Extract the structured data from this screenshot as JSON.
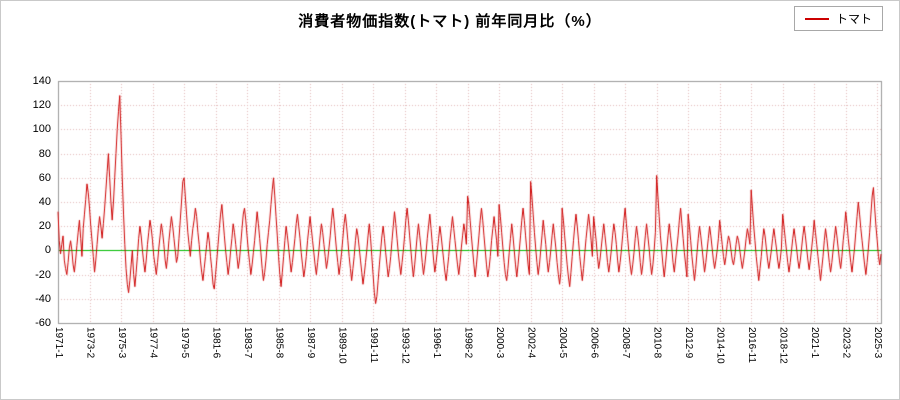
{
  "chart": {
    "title": "消費者物価指数(トマト) 前年同月比（%）",
    "legend_label": "トマト"
  },
  "chart_data": {
    "type": "line",
    "title": "消費者物価指数(トマト) 前年同月比（%）",
    "series_name": "トマト",
    "unit": "%",
    "x_start": "1971-1",
    "x_interval_months": 1,
    "x_tick_step_months": 25,
    "x_tick_labels": [
      "1971-1",
      "1973-2",
      "1975-3",
      "1977-4",
      "1979-5",
      "1981-6",
      "1983-7",
      "1985-8",
      "1987-9",
      "1989-10",
      "1991-11",
      "1993-12",
      "1996-1",
      "1998-2",
      "2000-3",
      "2002-4",
      "2004-5",
      "2006-6",
      "2008-7",
      "2010-8",
      "2012-9",
      "2014-10",
      "2016-11",
      "2018-12",
      "2021-1",
      "2023-2",
      "2025-3"
    ],
    "ylim": [
      -60,
      140
    ],
    "y_tick_step": 20,
    "grid": true,
    "grid_color": "#e2b9b9",
    "line_color": "#cc0000",
    "zero_line_color": "#00bb00",
    "border_color": "#999999",
    "values": [
      32,
      8,
      -3,
      5,
      12,
      -8,
      -15,
      -20,
      -10,
      2,
      8,
      0,
      -12,
      -18,
      -8,
      4,
      15,
      25,
      10,
      -5,
      18,
      30,
      42,
      55,
      48,
      35,
      20,
      8,
      -5,
      -18,
      -8,
      5,
      18,
      28,
      20,
      10,
      22,
      35,
      50,
      65,
      80,
      60,
      40,
      25,
      40,
      60,
      80,
      100,
      115,
      128,
      95,
      60,
      30,
      5,
      -15,
      -28,
      -35,
      -25,
      -12,
      0,
      -20,
      -30,
      -18,
      -5,
      10,
      20,
      12,
      0,
      -10,
      -18,
      -8,
      5,
      15,
      25,
      18,
      8,
      -5,
      -12,
      -20,
      -10,
      2,
      12,
      22,
      15,
      5,
      -8,
      -15,
      -5,
      8,
      18,
      28,
      20,
      10,
      0,
      -10,
      -5,
      10,
      25,
      40,
      57,
      60,
      45,
      30,
      15,
      5,
      -5,
      8,
      18,
      25,
      35,
      28,
      15,
      5,
      -8,
      -18,
      -25,
      -15,
      -5,
      5,
      15,
      8,
      -5,
      -15,
      -28,
      -32,
      -20,
      -8,
      5,
      18,
      30,
      38,
      25,
      12,
      0,
      -10,
      -20,
      -12,
      0,
      10,
      22,
      15,
      5,
      -5,
      -15,
      -8,
      5,
      18,
      30,
      35,
      25,
      12,
      0,
      -10,
      -20,
      -12,
      -2,
      8,
      20,
      32,
      22,
      10,
      -2,
      -15,
      -25,
      -18,
      -8,
      5,
      15,
      25,
      38,
      50,
      60,
      45,
      28,
      12,
      -5,
      -20,
      -30,
      -18,
      -5,
      8,
      20,
      12,
      2,
      -8,
      -18,
      -10,
      0,
      10,
      22,
      30,
      20,
      10,
      -2,
      -12,
      -22,
      -15,
      -5,
      8,
      18,
      28,
      18,
      8,
      -2,
      -12,
      -20,
      -10,
      0,
      12,
      22,
      15,
      5,
      -5,
      -15,
      -8,
      2,
      12,
      25,
      35,
      25,
      12,
      0,
      -10,
      -20,
      -12,
      -2,
      10,
      22,
      30,
      20,
      8,
      -5,
      -15,
      -25,
      -15,
      -5,
      8,
      18,
      12,
      2,
      -8,
      -18,
      -28,
      -20,
      -10,
      0,
      12,
      22,
      10,
      -5,
      -20,
      -35,
      -44,
      -38,
      -25,
      -12,
      0,
      12,
      20,
      10,
      -2,
      -12,
      -22,
      -15,
      -5,
      8,
      20,
      32,
      22,
      10,
      -2,
      -12,
      -20,
      -10,
      0,
      12,
      25,
      35,
      25,
      12,
      0,
      -12,
      -22,
      -12,
      0,
      12,
      22,
      12,
      2,
      -10,
      -20,
      -12,
      -2,
      10,
      20,
      30,
      18,
      5,
      -8,
      -18,
      -10,
      0,
      10,
      20,
      12,
      2,
      -8,
      -18,
      -25,
      -15,
      -5,
      8,
      18,
      28,
      18,
      8,
      -2,
      -12,
      -20,
      -10,
      2,
      12,
      22,
      15,
      5,
      45,
      38,
      25,
      12,
      0,
      -12,
      -22,
      -12,
      0,
      12,
      25,
      35,
      25,
      12,
      0,
      -12,
      -22,
      -15,
      -5,
      8,
      18,
      28,
      18,
      8,
      -5,
      38,
      28,
      15,
      2,
      -10,
      -20,
      -25,
      -15,
      -2,
      10,
      22,
      12,
      0,
      -12,
      -22,
      -12,
      0,
      12,
      25,
      35,
      25,
      12,
      0,
      -12,
      -20,
      57,
      45,
      30,
      15,
      2,
      -10,
      -20,
      -12,
      0,
      12,
      25,
      15,
      5,
      -8,
      -18,
      -10,
      0,
      12,
      22,
      12,
      2,
      -10,
      -20,
      -28,
      -18,
      35,
      25,
      12,
      0,
      -12,
      -22,
      -30,
      -18,
      -5,
      8,
      20,
      30,
      20,
      8,
      -5,
      -15,
      -25,
      -15,
      -2,
      10,
      20,
      30,
      20,
      8,
      -5,
      28,
      18,
      8,
      -5,
      -15,
      -8,
      2,
      12,
      22,
      12,
      2,
      -10,
      -18,
      -10,
      0,
      12,
      22,
      15,
      5,
      -8,
      -18,
      -10,
      0,
      12,
      25,
      35,
      22,
      10,
      -2,
      -12,
      -20,
      -12,
      -2,
      10,
      20,
      12,
      2,
      -10,
      -20,
      -12,
      0,
      12,
      22,
      12,
      2,
      -10,
      -20,
      -12,
      0,
      15,
      62,
      45,
      28,
      12,
      0,
      -12,
      -22,
      -12,
      0,
      12,
      22,
      12,
      2,
      -10,
      -18,
      -8,
      2,
      12,
      25,
      35,
      22,
      10,
      -2,
      -12,
      -22,
      30,
      20,
      8,
      -5,
      -15,
      -25,
      -15,
      -2,
      10,
      20,
      12,
      2,
      -8,
      -18,
      -10,
      0,
      10,
      20,
      12,
      2,
      -8,
      -15,
      -8,
      0,
      10,
      25,
      15,
      5,
      -5,
      -12,
      -5,
      5,
      12,
      8,
      0,
      -8,
      -12,
      -5,
      5,
      12,
      8,
      0,
      -8,
      -15,
      -8,
      0,
      10,
      18,
      12,
      5,
      50,
      35,
      20,
      8,
      -5,
      -15,
      -25,
      -15,
      -5,
      8,
      18,
      12,
      2,
      -8,
      -15,
      -8,
      0,
      10,
      18,
      10,
      2,
      -8,
      -15,
      -8,
      2,
      30,
      20,
      10,
      0,
      -10,
      -18,
      -10,
      0,
      10,
      18,
      10,
      2,
      -8,
      -15,
      -8,
      2,
      12,
      20,
      12,
      2,
      -8,
      -16,
      -8,
      2,
      12,
      25,
      15,
      5,
      -5,
      -15,
      -25,
      -15,
      -5,
      8,
      18,
      10,
      0,
      -10,
      -18,
      -10,
      0,
      10,
      20,
      12,
      2,
      -8,
      -15,
      -5,
      8,
      18,
      32,
      22,
      10,
      0,
      -10,
      -18,
      -8,
      2,
      15,
      28,
      40,
      30,
      18,
      8,
      -2,
      -12,
      -20,
      -10,
      2,
      15,
      30,
      45,
      52,
      35,
      20,
      8,
      -5,
      -12,
      -3
    ]
  }
}
